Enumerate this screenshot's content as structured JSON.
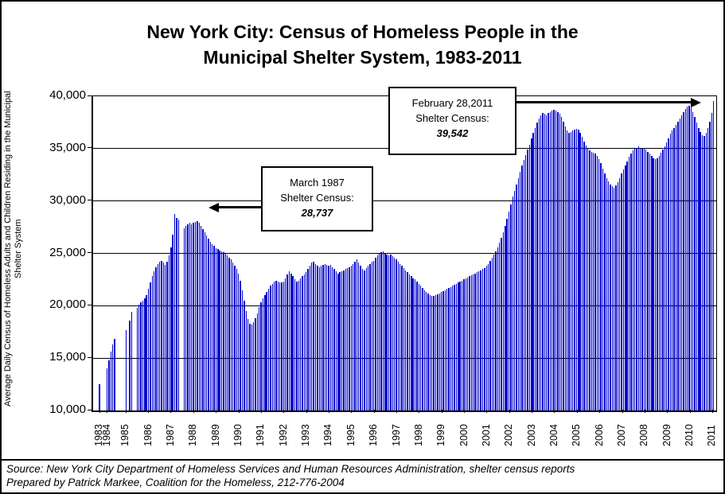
{
  "figure": {
    "title_line1": "New York City:  Census of Homeless People in the",
    "title_line2": "Municipal Shelter System, 1983-2011"
  },
  "annotations": {
    "march1987": {
      "line1": "March 1987",
      "line2": "Shelter Census:",
      "value": "28,737"
    },
    "feb2011": {
      "line1": "February 28,2011",
      "line2": "Shelter Census:",
      "value": "39,542"
    }
  },
  "footer": {
    "source": "Source:  New York City Department of Homeless Services and Human Resources Administration, shelter census reports",
    "prepared": "Prepared by Patrick Markee, Coalition for the Homeless, 212-776-2004"
  },
  "chart_data": {
    "type": "bar",
    "title": "New York City: Census of Homeless People in the Municipal Shelter System, 1983-2011",
    "xlabel": "",
    "ylabel_line1": "Average Daily Census of Homeless Adults and Children Residing in the Municipal",
    "ylabel_line2": "Shelter System",
    "ylim": [
      10000,
      40000
    ],
    "ytick_step": 5000,
    "yticks": [
      "40,000",
      "35,000",
      "30,000",
      "25,000",
      "20,000",
      "15,000",
      "10,000"
    ],
    "grid": true,
    "legend": "none",
    "bar_color": "#0000CC",
    "x_unit": "month",
    "notes": "null = month with no reported data (gap in bars)",
    "years": [
      {
        "year": "1983",
        "values": [
          12500,
          null,
          null,
          null
        ]
      },
      {
        "year": "1984",
        "values": [
          14000,
          14800,
          15600,
          16300,
          16800,
          null,
          null,
          null,
          null,
          null
        ]
      },
      {
        "year": "1985",
        "values": [
          17700,
          null,
          18600,
          19400,
          null,
          null,
          19800,
          20100,
          20300,
          20500,
          20700,
          21000
        ]
      },
      {
        "year": "1986",
        "values": [
          21600,
          22200,
          22800,
          23300,
          23700,
          24000,
          24200,
          24300,
          24100,
          23900,
          24200,
          24800
        ]
      },
      {
        "year": "1987",
        "values": [
          25600,
          26800,
          28737,
          28400,
          28200,
          null,
          null,
          27400,
          27600,
          27800,
          27900,
          27800
        ]
      },
      {
        "year": "1988",
        "values": [
          27900,
          28000,
          28100,
          27900,
          27600,
          27300,
          27000,
          26700,
          26400,
          26100,
          25900,
          25700
        ]
      },
      {
        "year": "1989",
        "values": [
          25500,
          25400,
          25300,
          25200,
          25100,
          25000,
          24800,
          24600,
          24400,
          24100,
          23800,
          23500
        ]
      },
      {
        "year": "1990",
        "values": [
          23100,
          22400,
          21500,
          20500,
          19500,
          18700,
          18300,
          18200,
          18400,
          18800,
          19300,
          19900
        ]
      },
      {
        "year": "1991",
        "values": [
          20300,
          20700,
          21000,
          21300,
          21600,
          21900,
          22100,
          22300,
          22400,
          22300,
          22200,
          22200
        ]
      },
      {
        "year": "1992",
        "values": [
          22300,
          22600,
          23000,
          23300,
          23100,
          22800,
          22500,
          22300,
          22400,
          22600,
          22800,
          23000
        ]
      },
      {
        "year": "1993",
        "values": [
          23200,
          23500,
          23800,
          24100,
          24200,
          24000,
          23800,
          23700,
          23800,
          23900,
          24000,
          23900
        ]
      },
      {
        "year": "1994",
        "values": [
          23800,
          23900,
          23700,
          23500,
          23300,
          23100,
          23200,
          23300,
          23400,
          23500,
          23600,
          23700
        ]
      },
      {
        "year": "1995",
        "values": [
          23800,
          24000,
          24200,
          24400,
          24100,
          23800,
          23500,
          23400,
          23600,
          23800,
          24000,
          24200
        ]
      },
      {
        "year": "1996",
        "values": [
          24300,
          24600,
          24800,
          25000,
          25100,
          25200,
          25000,
          24900,
          24800,
          24900,
          24700,
          24600
        ]
      },
      {
        "year": "1997",
        "values": [
          24400,
          24200,
          24000,
          23800,
          23600,
          23400,
          23200,
          23000,
          22800,
          22600,
          22500,
          22300
        ]
      },
      {
        "year": "1998",
        "values": [
          22100,
          21900,
          21700,
          21500,
          21300,
          21200,
          21000,
          20900,
          20900,
          21000,
          21100,
          21200
        ]
      },
      {
        "year": "1999",
        "values": [
          21300,
          21400,
          21500,
          21600,
          21700,
          21800,
          21900,
          22000,
          22100,
          22200,
          22300,
          22400
        ]
      },
      {
        "year": "2000",
        "values": [
          22500,
          22600,
          22700,
          22800,
          22900,
          23000,
          23100,
          23200,
          23300,
          23400,
          23500,
          23600
        ]
      },
      {
        "year": "2001",
        "values": [
          23800,
          24000,
          24300,
          24600,
          24900,
          25200,
          25600,
          26000,
          26500,
          27000,
          27600,
          28300
        ]
      },
      {
        "year": "2002",
        "values": [
          29000,
          29700,
          30400,
          31000,
          31600,
          32200,
          32800,
          33400,
          33900,
          34400,
          34900,
          35400
        ]
      },
      {
        "year": "2003",
        "values": [
          36000,
          36500,
          37000,
          37500,
          37900,
          38200,
          38400,
          38300,
          38200,
          38400,
          38500,
          38600
        ]
      },
      {
        "year": "2004",
        "values": [
          38700,
          38600,
          38500,
          38300,
          38000,
          37600,
          37100,
          36700,
          36500,
          36600,
          36700,
          36800
        ]
      },
      {
        "year": "2005",
        "values": [
          36900,
          36800,
          36500,
          36100,
          35700,
          35300,
          35000,
          34800,
          34700,
          34600,
          34500,
          34300
        ]
      },
      {
        "year": "2006",
        "values": [
          34000,
          33600,
          33100,
          32600,
          32200,
          31900,
          31600,
          31400,
          31300,
          31500,
          31800,
          32200
        ]
      },
      {
        "year": "2007",
        "values": [
          32600,
          33000,
          33400,
          33800,
          34200,
          34500,
          34800,
          35000,
          35100,
          35200,
          35100,
          35000
        ]
      },
      {
        "year": "2008",
        "values": [
          35000,
          34900,
          34700,
          34500,
          34300,
          34100,
          34000,
          34100,
          34300,
          34600,
          34900,
          35200
        ]
      },
      {
        "year": "2009",
        "values": [
          35600,
          36000,
          36400,
          36700,
          37000,
          37300,
          37600,
          37900,
          38200,
          38500,
          38800,
          39000
        ]
      },
      {
        "year": "2010",
        "values": [
          39100,
          38900,
          38500,
          38000,
          37500,
          37000,
          36600,
          36300,
          36200,
          36500,
          37000,
          37600
        ]
      },
      {
        "year": "2011",
        "values": [
          38400,
          39542
        ]
      }
    ]
  }
}
